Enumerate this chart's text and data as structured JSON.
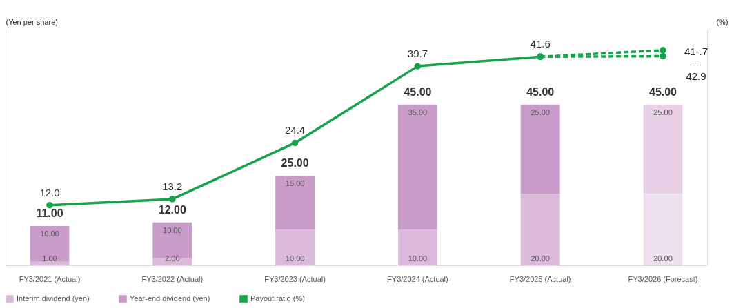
{
  "chart_data": {
    "type": "bar",
    "stacked": true,
    "categories": [
      "FY3/2021 (Actual)",
      "FY3/2022 (Actual)",
      "FY3/2023 (Actual)",
      "FY3/2024 (Actual)",
      "FY3/2025 (Actual)",
      "FY3/2026 (Forecast)"
    ],
    "ylabel": "(Yen per share)",
    "y2label": "(%)",
    "ylim": [
      0,
      66
    ],
    "y2lim": [
      0,
      47
    ],
    "tick_labels": "x",
    "legend": "bottom",
    "series": [
      {
        "name": "Interim dividend (yen)",
        "color": "#dbb9da",
        "colors": [
          "#dbb9da",
          "#dbb9da",
          "#dbb9da",
          "#dbb9da",
          "#dbb9da",
          "#efe0ee"
        ],
        "values": [
          1,
          2,
          10,
          10,
          20,
          20
        ],
        "value_labels": [
          "1.00",
          "2.00",
          "10.00",
          "10.00",
          "20.00",
          "20.00"
        ]
      },
      {
        "name": "Year-end dividend (yen)",
        "color": "#c89bc8",
        "colors": [
          "#c89bc8",
          "#c89bc8",
          "#c89bc8",
          "#c89bc8",
          "#c89bc8",
          "#e9d2e8"
        ],
        "values": [
          10,
          10,
          15,
          35,
          25,
          25
        ],
        "value_labels": [
          "10.00",
          "10.00",
          "15.00",
          "35.00",
          "25.00",
          "25.00"
        ]
      },
      {
        "name": "Payout ratio (%)",
        "type": "line",
        "axis": "y2",
        "color": "#17a34a",
        "marker": "circle",
        "line_style": "solid",
        "values": [
          12.0,
          13.2,
          24.4,
          39.7,
          41.6,
          null
        ],
        "value_labels": [
          "12.0",
          "13.2",
          "24.4",
          "39.7",
          "41.6",
          null
        ]
      },
      {
        "type": "line",
        "axis": "y2",
        "color": "#17a34a",
        "marker": "circle",
        "line_style": "dashed",
        "values": [
          null,
          null,
          null,
          null,
          41.6,
          42.9
        ]
      },
      {
        "type": "line",
        "axis": "y2",
        "color": "#17a34a",
        "marker": "circle",
        "line_style": "dashed",
        "values": [
          null,
          null,
          null,
          null,
          41.6,
          41.7
        ]
      }
    ],
    "totals": [
      "11.00",
      "12.00",
      "25.00",
      "45.00",
      "45.00",
      "45.00"
    ],
    "annotations": [
      "41-.7 – 42.9"
    ]
  }
}
